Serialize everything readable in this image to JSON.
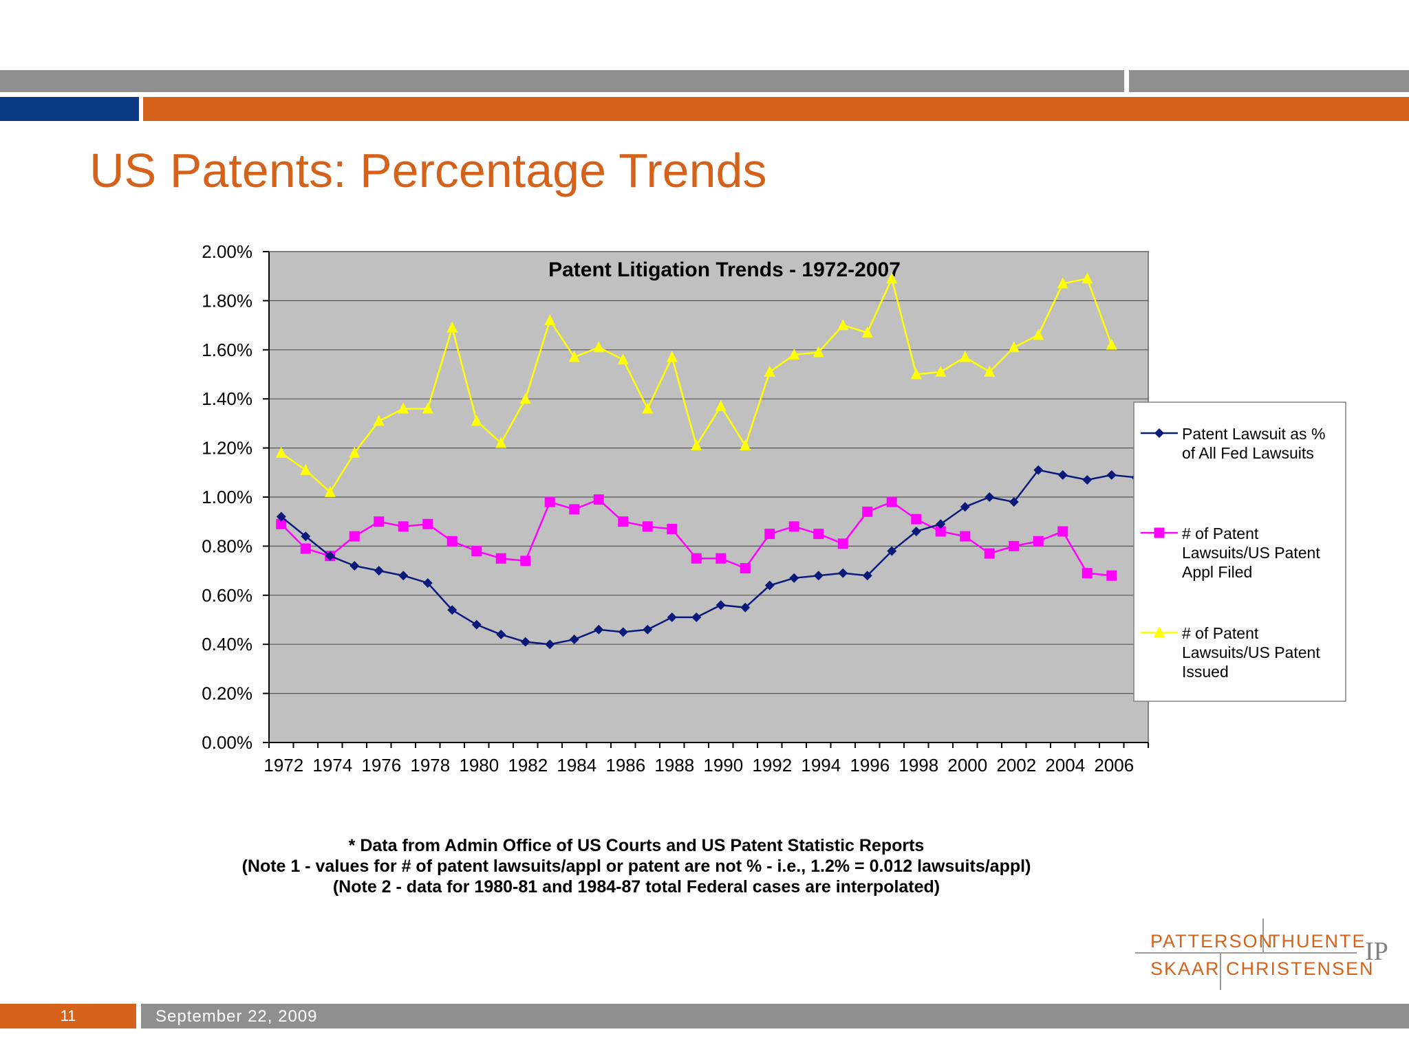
{
  "slide": {
    "title": "US Patents:  Percentage Trends",
    "page_number": "11",
    "date": "September 22, 2009",
    "colors": {
      "orange": "#d4621b",
      "navy": "#0a3a84",
      "gray": "#8f8f8f"
    }
  },
  "footnotes": [
    "* Data from Admin Office of US Courts and US Patent Statistic Reports",
    "(Note 1 - values for # of patent lawsuits/appl or patent are not % - i.e., 1.2% = 0.012 lawsuits/appl)",
    "(Note 2 - data for 1980-81 and 1984-87 total Federal cases are interpolated)"
  ],
  "logo": {
    "word1": "PATTERSON",
    "word2": "THUENTE",
    "word3": "SKAAR",
    "word4": "CHRISTENSEN",
    "suffix": "IP"
  },
  "chart_data": {
    "type": "line",
    "title": "Patent Litigation Trends - 1972-2007",
    "x": [
      1972,
      1973,
      1974,
      1975,
      1976,
      1977,
      1978,
      1979,
      1980,
      1981,
      1982,
      1983,
      1984,
      1985,
      1986,
      1987,
      1988,
      1989,
      1990,
      1991,
      1992,
      1993,
      1994,
      1995,
      1996,
      1997,
      1998,
      1999,
      2000,
      2001,
      2002,
      2003,
      2004,
      2005,
      2006,
      2007
    ],
    "x_tick_labels": [
      "1972",
      "1974",
      "1976",
      "1978",
      "1980",
      "1982",
      "1984",
      "1986",
      "1988",
      "1990",
      "1992",
      "1994",
      "1996",
      "1998",
      "2000",
      "2002",
      "2004",
      "2006"
    ],
    "y_tick_labels": [
      "0.00%",
      "0.20%",
      "0.40%",
      "0.60%",
      "0.80%",
      "1.00%",
      "1.20%",
      "1.40%",
      "1.60%",
      "1.80%",
      "2.00%"
    ],
    "ylim": [
      0,
      2.0
    ],
    "grid": true,
    "legend_position": "right",
    "series": [
      {
        "name": "Patent Lawsuit as % of All Fed Lawsuits",
        "legend_lines": [
          "Patent Lawsuit as %",
          "of All Fed Lawsuits"
        ],
        "color": "#0a1a7a",
        "marker": "diamond",
        "values": [
          0.92,
          0.84,
          0.76,
          0.72,
          0.7,
          0.68,
          0.65,
          0.54,
          0.48,
          0.44,
          0.41,
          0.4,
          0.42,
          0.46,
          0.45,
          0.46,
          0.51,
          0.51,
          0.56,
          0.55,
          0.64,
          0.67,
          0.68,
          0.69,
          0.68,
          0.78,
          0.86,
          0.89,
          0.96,
          1.0,
          0.98,
          1.11,
          1.09,
          1.07,
          1.09,
          1.08
        ]
      },
      {
        "name": "# of Patent Lawsuits/US Patent Appl Filed",
        "legend_lines": [
          "# of Patent",
          "Lawsuits/US Patent",
          "Appl Filed"
        ],
        "color": "#ff00ff",
        "marker": "square",
        "values": [
          0.89,
          0.79,
          0.76,
          0.84,
          0.9,
          0.88,
          0.89,
          0.82,
          0.78,
          0.75,
          0.74,
          0.98,
          0.95,
          0.99,
          0.9,
          0.88,
          0.87,
          0.75,
          0.75,
          0.71,
          0.85,
          0.88,
          0.85,
          0.81,
          0.94,
          0.98,
          0.91,
          0.86,
          0.84,
          0.77,
          0.8,
          0.82,
          0.86,
          0.69,
          0.68,
          null
        ]
      },
      {
        "name": "# of Patent Lawsuits/US Patent Issued",
        "legend_lines": [
          "# of Patent",
          "Lawsuits/US Patent",
          "Issued"
        ],
        "color": "#ffff00",
        "marker": "triangle",
        "values": [
          1.18,
          1.11,
          1.02,
          1.18,
          1.31,
          1.36,
          1.36,
          1.69,
          1.31,
          1.22,
          1.4,
          1.72,
          1.57,
          1.61,
          1.56,
          1.36,
          1.57,
          1.21,
          1.37,
          1.21,
          1.51,
          1.58,
          1.59,
          1.7,
          1.67,
          1.89,
          1.5,
          1.51,
          1.57,
          1.51,
          1.61,
          1.66,
          1.87,
          1.89,
          1.62,
          null
        ]
      }
    ]
  }
}
